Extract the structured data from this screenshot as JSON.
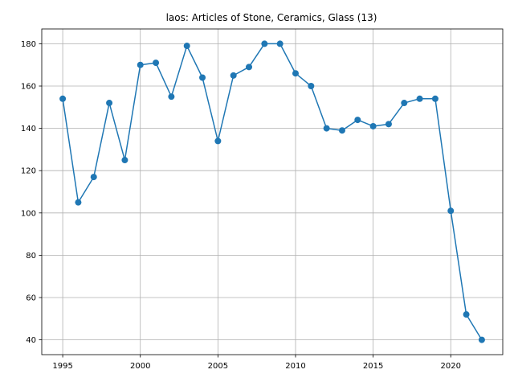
{
  "chart_data": {
    "type": "line",
    "title": "laos: Articles of Stone, Ceramics, Glass (13)",
    "xlabel": "",
    "ylabel": "",
    "x": [
      1995,
      1996,
      1997,
      1998,
      1999,
      2000,
      2001,
      2002,
      2003,
      2004,
      2005,
      2006,
      2007,
      2008,
      2009,
      2010,
      2011,
      2012,
      2013,
      2014,
      2015,
      2016,
      2017,
      2018,
      2019,
      2020,
      2021,
      2022
    ],
    "series": [
      {
        "values": [
          154,
          105,
          117,
          152,
          125,
          170,
          171,
          155,
          179,
          164,
          134,
          165,
          169,
          180,
          180,
          166,
          160,
          140,
          139,
          144,
          141,
          142,
          152,
          154,
          154,
          101,
          52,
          40
        ]
      }
    ],
    "xticks": [
      1995,
      2000,
      2005,
      2010,
      2015,
      2020
    ],
    "yticks": [
      40,
      60,
      80,
      100,
      120,
      140,
      160,
      180
    ],
    "xlim": [
      1993.65,
      2023.35
    ],
    "ylim": [
      33,
      187
    ],
    "grid": true,
    "line_color": "#1f77b4",
    "marker": "circle"
  }
}
